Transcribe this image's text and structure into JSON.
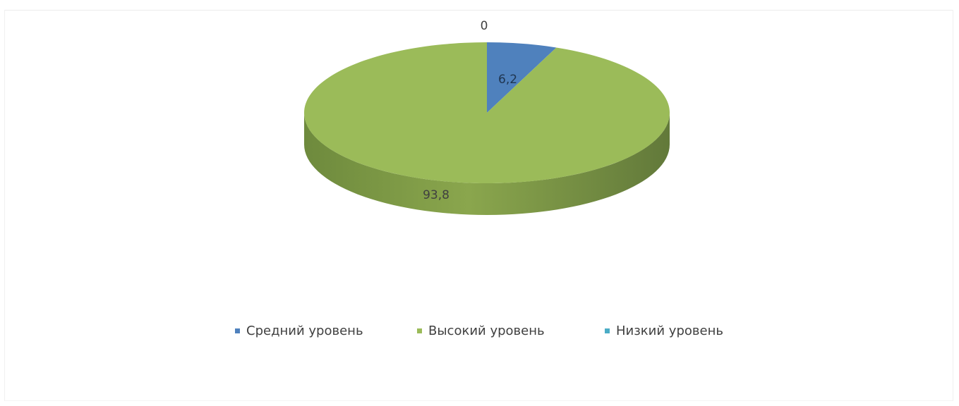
{
  "chart_data": {
    "type": "pie",
    "style": "3d",
    "title": "",
    "legend_position": "bottom",
    "categories": [
      "Средний уровень",
      "Высокий уровень",
      "Низкий уровень"
    ],
    "values": [
      6.2,
      93.8,
      0
    ],
    "data_labels": [
      "6,2",
      "93,8",
      "0"
    ],
    "colors": [
      "#4f81bd",
      "#9bbb59",
      "#4bacc6"
    ],
    "side_colors": [
      "#3d6795",
      "#6d8b3c",
      "#38869a"
    ]
  }
}
